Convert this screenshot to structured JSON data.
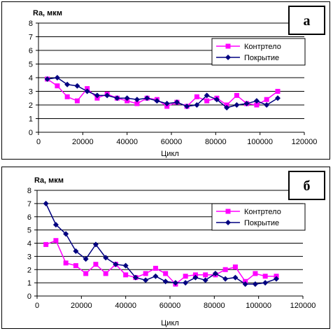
{
  "colors": {
    "contr": "#ff00ff",
    "coat": "#000080",
    "grid": "#000000"
  },
  "chart_data": [
    {
      "type": "line",
      "panel_label": "а",
      "ylabel": "Ra, мкм",
      "xlabel": "Цикл",
      "xlim": [
        0,
        120000
      ],
      "ylim": [
        0,
        8
      ],
      "x_ticks": [
        "0",
        "20000",
        "40000",
        "60000",
        "80000",
        "100000",
        "120000"
      ],
      "y_ticks": [
        "0",
        "1",
        "2",
        "3",
        "4",
        "5",
        "6",
        "7",
        "8"
      ],
      "legend_position": "top-right",
      "grid": "horizontal",
      "series": [
        {
          "name": "Контртело",
          "color": "#ff00ff",
          "marker": "square",
          "x": [
            4000,
            8500,
            13000,
            17500,
            22000,
            26500,
            31000,
            35500,
            40000,
            44500,
            49000,
            53500,
            58000,
            62500,
            67000,
            71500,
            76000,
            80500,
            85000,
            89500,
            94000,
            98500,
            103000,
            108000
          ],
          "values": [
            3.9,
            3.4,
            2.6,
            2.3,
            3.2,
            2.5,
            2.8,
            2.5,
            2.3,
            2.1,
            2.5,
            2.4,
            1.9,
            2.2,
            1.9,
            2.6,
            2.3,
            2.5,
            2.0,
            2.7,
            2.1,
            2.0,
            2.4,
            3.0
          ]
        },
        {
          "name": "Покрытие",
          "color": "#000080",
          "marker": "diamond",
          "x": [
            4000,
            8500,
            13000,
            17500,
            22000,
            26500,
            31000,
            35500,
            40000,
            44500,
            49000,
            53500,
            58000,
            62500,
            67000,
            71500,
            76000,
            80500,
            85000,
            89500,
            94000,
            98500,
            103000,
            108000
          ],
          "values": [
            3.9,
            4.0,
            3.5,
            3.4,
            3.0,
            2.7,
            2.7,
            2.5,
            2.5,
            2.4,
            2.5,
            2.3,
            2.1,
            2.2,
            1.9,
            2.0,
            2.7,
            2.4,
            1.8,
            2.0,
            2.1,
            2.3,
            2.0,
            2.5
          ]
        }
      ]
    },
    {
      "type": "line",
      "panel_label": "б",
      "ylabel": "Ra, мкм",
      "xlabel": "Цикл",
      "xlim": [
        0,
        120000
      ],
      "ylim": [
        0,
        8
      ],
      "x_ticks": [
        "0",
        "20000",
        "40000",
        "60000",
        "80000",
        "100000",
        "120000"
      ],
      "y_ticks": [
        "0",
        "1",
        "2",
        "3",
        "4",
        "5",
        "6",
        "7",
        "8"
      ],
      "legend_position": "top-right",
      "grid": "horizontal",
      "series": [
        {
          "name": "Контртело",
          "color": "#ff00ff",
          "marker": "square",
          "x": [
            4000,
            8500,
            13000,
            17500,
            22000,
            26500,
            31000,
            35500,
            40000,
            44500,
            49000,
            53500,
            58000,
            62500,
            67000,
            71500,
            76000,
            80500,
            85000,
            89500,
            94000,
            98500,
            103000,
            108000
          ],
          "values": [
            3.9,
            4.2,
            2.5,
            2.3,
            1.7,
            2.4,
            1.7,
            2.4,
            1.6,
            1.4,
            1.7,
            2.1,
            1.7,
            0.9,
            1.5,
            1.6,
            1.6,
            1.6,
            2.0,
            2.2,
            1.1,
            1.7,
            1.5,
            1.5
          ]
        },
        {
          "name": "Покрытие",
          "color": "#000080",
          "marker": "diamond",
          "x": [
            4000,
            8500,
            13000,
            17500,
            22000,
            26500,
            31000,
            35500,
            40000,
            44500,
            49000,
            53500,
            58000,
            62500,
            67000,
            71500,
            76000,
            80500,
            85000,
            89500,
            94000,
            98500,
            103000,
            108000
          ],
          "values": [
            7.0,
            5.4,
            4.7,
            3.4,
            2.8,
            3.9,
            2.9,
            2.4,
            2.3,
            1.4,
            1.2,
            1.5,
            1.1,
            1.0,
            1.0,
            1.4,
            1.2,
            1.7,
            1.3,
            1.4,
            0.9,
            0.9,
            1.0,
            1.3
          ]
        }
      ]
    }
  ]
}
